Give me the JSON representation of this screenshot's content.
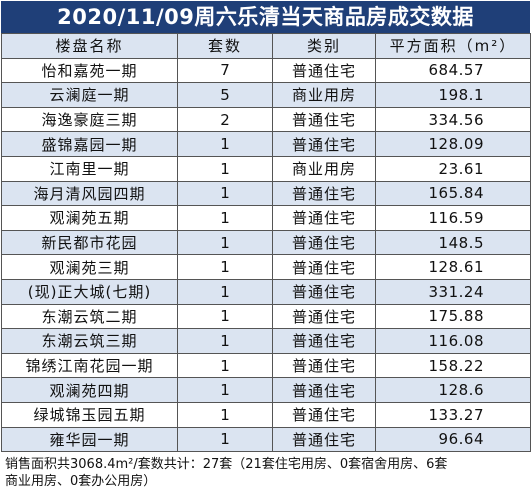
{
  "title": "2020/11/09周六乐清当天商品房成交数据",
  "headers": [
    "楼盘名称",
    "套数",
    "类别",
    "平方面积（m²）"
  ],
  "rows": [
    {
      "name": "怡和嘉苑一期",
      "sets": "7",
      "type": "普通住宅",
      "area": "684.57"
    },
    {
      "name": "云澜庭一期",
      "sets": "5",
      "type": "商业用房",
      "area": "198.1"
    },
    {
      "name": "海逸豪庭三期",
      "sets": "2",
      "type": "普通住宅",
      "area": "334.56"
    },
    {
      "name": "盛锦嘉园一期",
      "sets": "1",
      "type": "普通住宅",
      "area": "128.09"
    },
    {
      "name": "江南里一期",
      "sets": "1",
      "type": "商业用房",
      "area": "23.61"
    },
    {
      "name": "海月清风园四期",
      "sets": "1",
      "type": "普通住宅",
      "area": "165.84"
    },
    {
      "name": "观澜苑五期",
      "sets": "1",
      "type": "普通住宅",
      "area": "116.59"
    },
    {
      "name": "新民都市花园",
      "sets": "1",
      "type": "普通住宅",
      "area": "148.5"
    },
    {
      "name": "观澜苑三期",
      "sets": "1",
      "type": "普通住宅",
      "area": "128.61"
    },
    {
      "name": "(现)正大城(七期)",
      "sets": "1",
      "type": "普通住宅",
      "area": "331.24"
    },
    {
      "name": "东潮云筑二期",
      "sets": "1",
      "type": "普通住宅",
      "area": "175.88"
    },
    {
      "name": "东潮云筑三期",
      "sets": "1",
      "type": "普通住宅",
      "area": "116.08"
    },
    {
      "name": "锦绣江南花园一期",
      "sets": "1",
      "type": "普通住宅",
      "area": "158.22"
    },
    {
      "name": "观澜苑四期",
      "sets": "1",
      "type": "普通住宅",
      "area": "128.6"
    },
    {
      "name": "绿城锦玉园五期",
      "sets": "1",
      "type": "普通住宅",
      "area": "133.27"
    },
    {
      "name": "雍华园一期",
      "sets": "1",
      "type": "普通住宅",
      "area": "96.64"
    }
  ],
  "footer": {
    "line1": "销售面积共3068.4m²/套数共计：27套（21套住宅用房、0套宿舍用房、6套",
    "line2": "商业用房、0套办公用房）"
  }
}
